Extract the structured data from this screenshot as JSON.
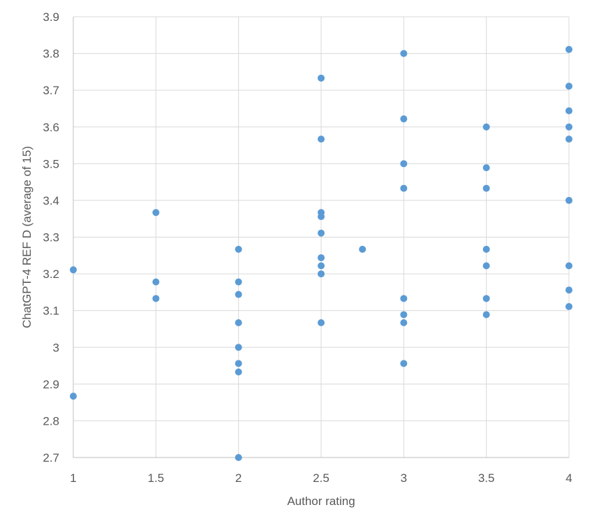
{
  "chart_data": {
    "type": "scatter",
    "title": "",
    "xlabel": "Author rating",
    "ylabel": "ChatGPT-4 REF D (average of 15)",
    "xlim": [
      1,
      4
    ],
    "ylim": [
      2.7,
      3.9
    ],
    "x_ticks": [
      "1",
      "1.5",
      "2",
      "2.5",
      "3",
      "3.5",
      "4"
    ],
    "y_ticks": [
      "2.7",
      "2.8",
      "2.9",
      "3",
      "3.1",
      "3.2",
      "3.3",
      "3.4",
      "3.5",
      "3.6",
      "3.7",
      "3.8",
      "3.9"
    ],
    "grid": true,
    "legend": "none",
    "marker_color": "#5b9bd5",
    "series": [
      {
        "points": [
          [
            1,
            3.211
          ],
          [
            1,
            2.867
          ],
          [
            1.5,
            3.367
          ],
          [
            1.5,
            3.178
          ],
          [
            1.5,
            3.133
          ],
          [
            2,
            3.267
          ],
          [
            2,
            3.178
          ],
          [
            2,
            3.144
          ],
          [
            2,
            3.067
          ],
          [
            2,
            3.0
          ],
          [
            2,
            2.956
          ],
          [
            2,
            2.933
          ],
          [
            2,
            2.7
          ],
          [
            2.5,
            3.733
          ],
          [
            2.5,
            3.567
          ],
          [
            2.5,
            3.367
          ],
          [
            2.5,
            3.356
          ],
          [
            2.5,
            3.311
          ],
          [
            2.5,
            3.244
          ],
          [
            2.5,
            3.222
          ],
          [
            2.5,
            3.2
          ],
          [
            2.5,
            3.067
          ],
          [
            2.75,
            3.267
          ],
          [
            3,
            3.8
          ],
          [
            3,
            3.622
          ],
          [
            3,
            3.5
          ],
          [
            3,
            3.433
          ],
          [
            3,
            3.133
          ],
          [
            3,
            3.089
          ],
          [
            3,
            3.067
          ],
          [
            3,
            2.956
          ],
          [
            3.5,
            3.6
          ],
          [
            3.5,
            3.489
          ],
          [
            3.5,
            3.433
          ],
          [
            3.5,
            3.267
          ],
          [
            3.5,
            3.222
          ],
          [
            3.5,
            3.133
          ],
          [
            3.5,
            3.089
          ],
          [
            4,
            3.811
          ],
          [
            4,
            3.711
          ],
          [
            4,
            3.644
          ],
          [
            4,
            3.6
          ],
          [
            4,
            3.567
          ],
          [
            4,
            3.4
          ],
          [
            4,
            3.222
          ],
          [
            4,
            3.156
          ],
          [
            4,
            3.111
          ]
        ]
      }
    ]
  }
}
